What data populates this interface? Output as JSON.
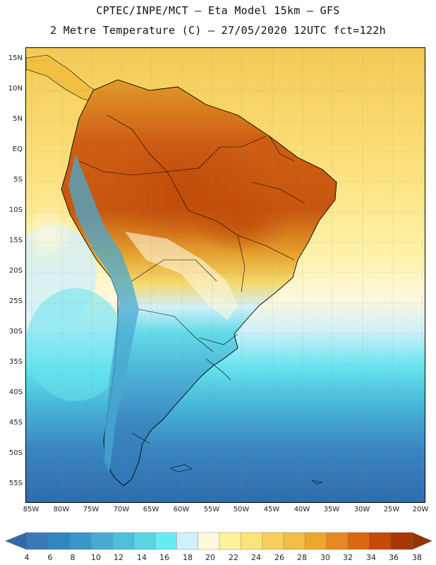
{
  "header": {
    "line1": "CPTEC/INPE/MCT –  Eta Model 15km – GFS",
    "line2": "2 Metre Temperature (C) – 27/05/2020 12UTC fct=122h"
  },
  "map": {
    "lat_labels": [
      "15N",
      "10N",
      "5N",
      "EQ",
      "5S",
      "10S",
      "15S",
      "20S",
      "25S",
      "30S",
      "35S",
      "40S",
      "45S",
      "50S",
      "55S"
    ],
    "lon_labels": [
      "85W",
      "80W",
      "75W",
      "70W",
      "65W",
      "60W",
      "55W",
      "50W",
      "45W",
      "40W",
      "35W",
      "30W",
      "25W",
      "20W"
    ]
  },
  "colorbar": {
    "labels": [
      "4",
      "6",
      "8",
      "10",
      "12",
      "14",
      "16",
      "18",
      "20",
      "22",
      "24",
      "26",
      "28",
      "30",
      "32",
      "34",
      "36",
      "38"
    ],
    "colors": [
      "#3a78b6",
      "#2f86c0",
      "#3a96c8",
      "#48aad2",
      "#4cc0dc",
      "#58d4e4",
      "#66ecf2",
      "#d2f0fa",
      "#fef8dc",
      "#fef39c",
      "#fce47a",
      "#f7d05c",
      "#f1bf42",
      "#eca82a",
      "#e58920",
      "#dc6612",
      "#c74808",
      "#a83704"
    ],
    "low_color": "#2f6bab",
    "high_color": "#9a3105"
  }
}
